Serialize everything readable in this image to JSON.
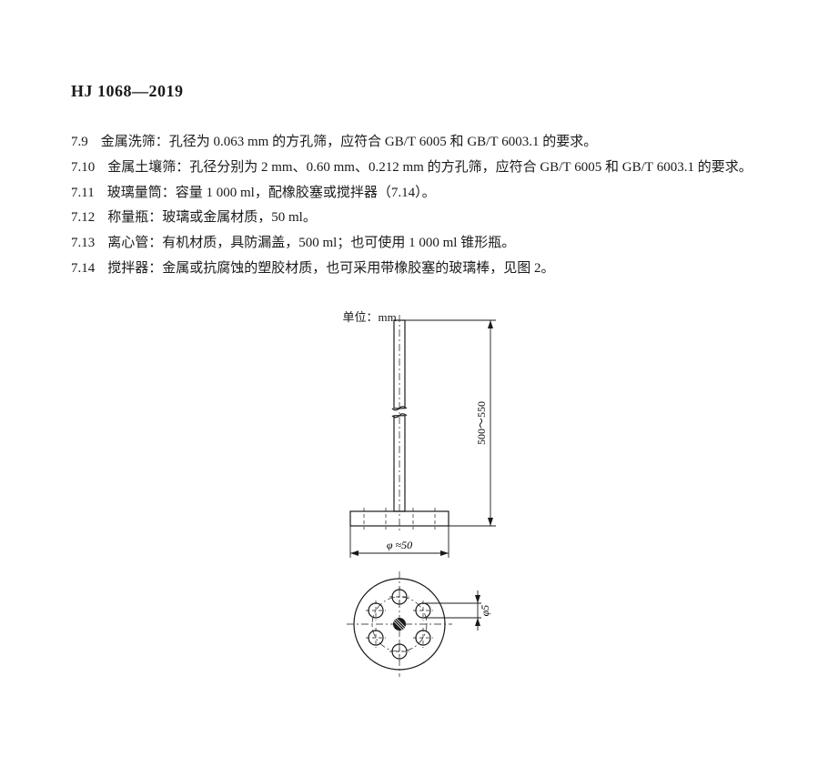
{
  "header": {
    "code_prefix": "HJ",
    "code_number": " 1068—2019"
  },
  "clauses": [
    {
      "num": "7.9",
      "text": "金属洗筛：孔径为 0.063 mm 的方孔筛，应符合 GB/T 6005 和 GB/T 6003.1 的要求。"
    },
    {
      "num": "7.10",
      "text": "金属土壤筛：孔径分别为 2 mm、0.60 mm、0.212 mm 的方孔筛，应符合 GB/T 6005 和 GB/T 6003.1 的要求。"
    },
    {
      "num": "7.11",
      "text": "玻璃量筒：容量 1 000 ml，配橡胶塞或搅拌器（7.14）。"
    },
    {
      "num": "7.12",
      "text": "称量瓶：玻璃或金属材质，50 ml。"
    },
    {
      "num": "7.13",
      "text": "离心管：有机材质，具防漏盖，500 ml；也可使用 1 000 ml 锥形瓶。"
    },
    {
      "num": "7.14",
      "text": "搅拌器：金属或抗腐蚀的塑胶材质，也可采用带橡胶塞的玻璃棒，见图 2。"
    }
  ],
  "figure": {
    "unit_label": "单位：mm",
    "dim_height": "500～550",
    "dim_diameter": "φ ≈50",
    "dim_hole": "φ5",
    "style": {
      "stroke": "#1a1a1a",
      "stroke_width_main": 1.2,
      "stroke_width_dim": 0.9,
      "stroke_width_center": 0.7,
      "shaft_width": 12,
      "shaft_height": 210,
      "base_width": 108,
      "base_height": 16,
      "disc_radius": 50,
      "hole_radius": 8,
      "hub_radius": 7,
      "hole_ring_radius": 30,
      "font_size_dim": 12,
      "font_family_dim": "Times New Roman, serif",
      "dash_long": "8 3 2 3",
      "dash_short": "4 3"
    }
  }
}
